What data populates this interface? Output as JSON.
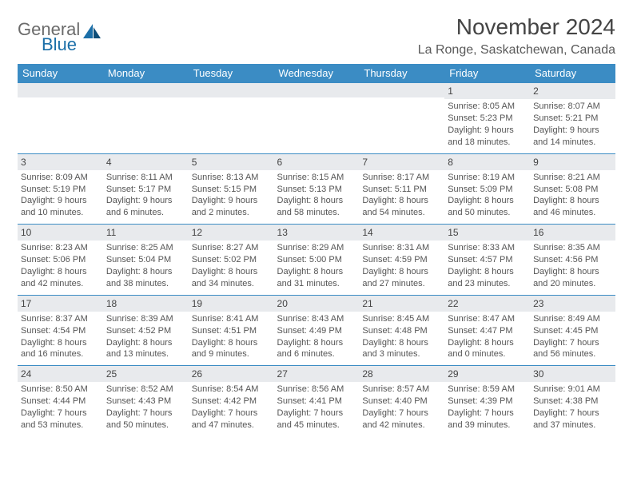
{
  "brand": {
    "general": "General",
    "blue": "Blue"
  },
  "title": "November 2024",
  "location": "La Ronge, Saskatchewan, Canada",
  "colors": {
    "header_blue": "#3b8cc4",
    "row_top": "#e8eaed",
    "border": "#3b8cc4",
    "logo_grey": "#6b6b6b",
    "logo_blue": "#1b6fa8"
  },
  "daysOfWeek": [
    "Sunday",
    "Monday",
    "Tuesday",
    "Wednesday",
    "Thursday",
    "Friday",
    "Saturday"
  ],
  "grid": [
    [
      null,
      null,
      null,
      null,
      null,
      {
        "n": "1",
        "sunrise": "Sunrise: 8:05 AM",
        "sunset": "Sunset: 5:23 PM",
        "d1": "Daylight: 9 hours",
        "d2": "and 18 minutes."
      },
      {
        "n": "2",
        "sunrise": "Sunrise: 8:07 AM",
        "sunset": "Sunset: 5:21 PM",
        "d1": "Daylight: 9 hours",
        "d2": "and 14 minutes."
      }
    ],
    [
      {
        "n": "3",
        "sunrise": "Sunrise: 8:09 AM",
        "sunset": "Sunset: 5:19 PM",
        "d1": "Daylight: 9 hours",
        "d2": "and 10 minutes."
      },
      {
        "n": "4",
        "sunrise": "Sunrise: 8:11 AM",
        "sunset": "Sunset: 5:17 PM",
        "d1": "Daylight: 9 hours",
        "d2": "and 6 minutes."
      },
      {
        "n": "5",
        "sunrise": "Sunrise: 8:13 AM",
        "sunset": "Sunset: 5:15 PM",
        "d1": "Daylight: 9 hours",
        "d2": "and 2 minutes."
      },
      {
        "n": "6",
        "sunrise": "Sunrise: 8:15 AM",
        "sunset": "Sunset: 5:13 PM",
        "d1": "Daylight: 8 hours",
        "d2": "and 58 minutes."
      },
      {
        "n": "7",
        "sunrise": "Sunrise: 8:17 AM",
        "sunset": "Sunset: 5:11 PM",
        "d1": "Daylight: 8 hours",
        "d2": "and 54 minutes."
      },
      {
        "n": "8",
        "sunrise": "Sunrise: 8:19 AM",
        "sunset": "Sunset: 5:09 PM",
        "d1": "Daylight: 8 hours",
        "d2": "and 50 minutes."
      },
      {
        "n": "9",
        "sunrise": "Sunrise: 8:21 AM",
        "sunset": "Sunset: 5:08 PM",
        "d1": "Daylight: 8 hours",
        "d2": "and 46 minutes."
      }
    ],
    [
      {
        "n": "10",
        "sunrise": "Sunrise: 8:23 AM",
        "sunset": "Sunset: 5:06 PM",
        "d1": "Daylight: 8 hours",
        "d2": "and 42 minutes."
      },
      {
        "n": "11",
        "sunrise": "Sunrise: 8:25 AM",
        "sunset": "Sunset: 5:04 PM",
        "d1": "Daylight: 8 hours",
        "d2": "and 38 minutes."
      },
      {
        "n": "12",
        "sunrise": "Sunrise: 8:27 AM",
        "sunset": "Sunset: 5:02 PM",
        "d1": "Daylight: 8 hours",
        "d2": "and 34 minutes."
      },
      {
        "n": "13",
        "sunrise": "Sunrise: 8:29 AM",
        "sunset": "Sunset: 5:00 PM",
        "d1": "Daylight: 8 hours",
        "d2": "and 31 minutes."
      },
      {
        "n": "14",
        "sunrise": "Sunrise: 8:31 AM",
        "sunset": "Sunset: 4:59 PM",
        "d1": "Daylight: 8 hours",
        "d2": "and 27 minutes."
      },
      {
        "n": "15",
        "sunrise": "Sunrise: 8:33 AM",
        "sunset": "Sunset: 4:57 PM",
        "d1": "Daylight: 8 hours",
        "d2": "and 23 minutes."
      },
      {
        "n": "16",
        "sunrise": "Sunrise: 8:35 AM",
        "sunset": "Sunset: 4:56 PM",
        "d1": "Daylight: 8 hours",
        "d2": "and 20 minutes."
      }
    ],
    [
      {
        "n": "17",
        "sunrise": "Sunrise: 8:37 AM",
        "sunset": "Sunset: 4:54 PM",
        "d1": "Daylight: 8 hours",
        "d2": "and 16 minutes."
      },
      {
        "n": "18",
        "sunrise": "Sunrise: 8:39 AM",
        "sunset": "Sunset: 4:52 PM",
        "d1": "Daylight: 8 hours",
        "d2": "and 13 minutes."
      },
      {
        "n": "19",
        "sunrise": "Sunrise: 8:41 AM",
        "sunset": "Sunset: 4:51 PM",
        "d1": "Daylight: 8 hours",
        "d2": "and 9 minutes."
      },
      {
        "n": "20",
        "sunrise": "Sunrise: 8:43 AM",
        "sunset": "Sunset: 4:49 PM",
        "d1": "Daylight: 8 hours",
        "d2": "and 6 minutes."
      },
      {
        "n": "21",
        "sunrise": "Sunrise: 8:45 AM",
        "sunset": "Sunset: 4:48 PM",
        "d1": "Daylight: 8 hours",
        "d2": "and 3 minutes."
      },
      {
        "n": "22",
        "sunrise": "Sunrise: 8:47 AM",
        "sunset": "Sunset: 4:47 PM",
        "d1": "Daylight: 8 hours",
        "d2": "and 0 minutes."
      },
      {
        "n": "23",
        "sunrise": "Sunrise: 8:49 AM",
        "sunset": "Sunset: 4:45 PM",
        "d1": "Daylight: 7 hours",
        "d2": "and 56 minutes."
      }
    ],
    [
      {
        "n": "24",
        "sunrise": "Sunrise: 8:50 AM",
        "sunset": "Sunset: 4:44 PM",
        "d1": "Daylight: 7 hours",
        "d2": "and 53 minutes."
      },
      {
        "n": "25",
        "sunrise": "Sunrise: 8:52 AM",
        "sunset": "Sunset: 4:43 PM",
        "d1": "Daylight: 7 hours",
        "d2": "and 50 minutes."
      },
      {
        "n": "26",
        "sunrise": "Sunrise: 8:54 AM",
        "sunset": "Sunset: 4:42 PM",
        "d1": "Daylight: 7 hours",
        "d2": "and 47 minutes."
      },
      {
        "n": "27",
        "sunrise": "Sunrise: 8:56 AM",
        "sunset": "Sunset: 4:41 PM",
        "d1": "Daylight: 7 hours",
        "d2": "and 45 minutes."
      },
      {
        "n": "28",
        "sunrise": "Sunrise: 8:57 AM",
        "sunset": "Sunset: 4:40 PM",
        "d1": "Daylight: 7 hours",
        "d2": "and 42 minutes."
      },
      {
        "n": "29",
        "sunrise": "Sunrise: 8:59 AM",
        "sunset": "Sunset: 4:39 PM",
        "d1": "Daylight: 7 hours",
        "d2": "and 39 minutes."
      },
      {
        "n": "30",
        "sunrise": "Sunrise: 9:01 AM",
        "sunset": "Sunset: 4:38 PM",
        "d1": "Daylight: 7 hours",
        "d2": "and 37 minutes."
      }
    ]
  ]
}
